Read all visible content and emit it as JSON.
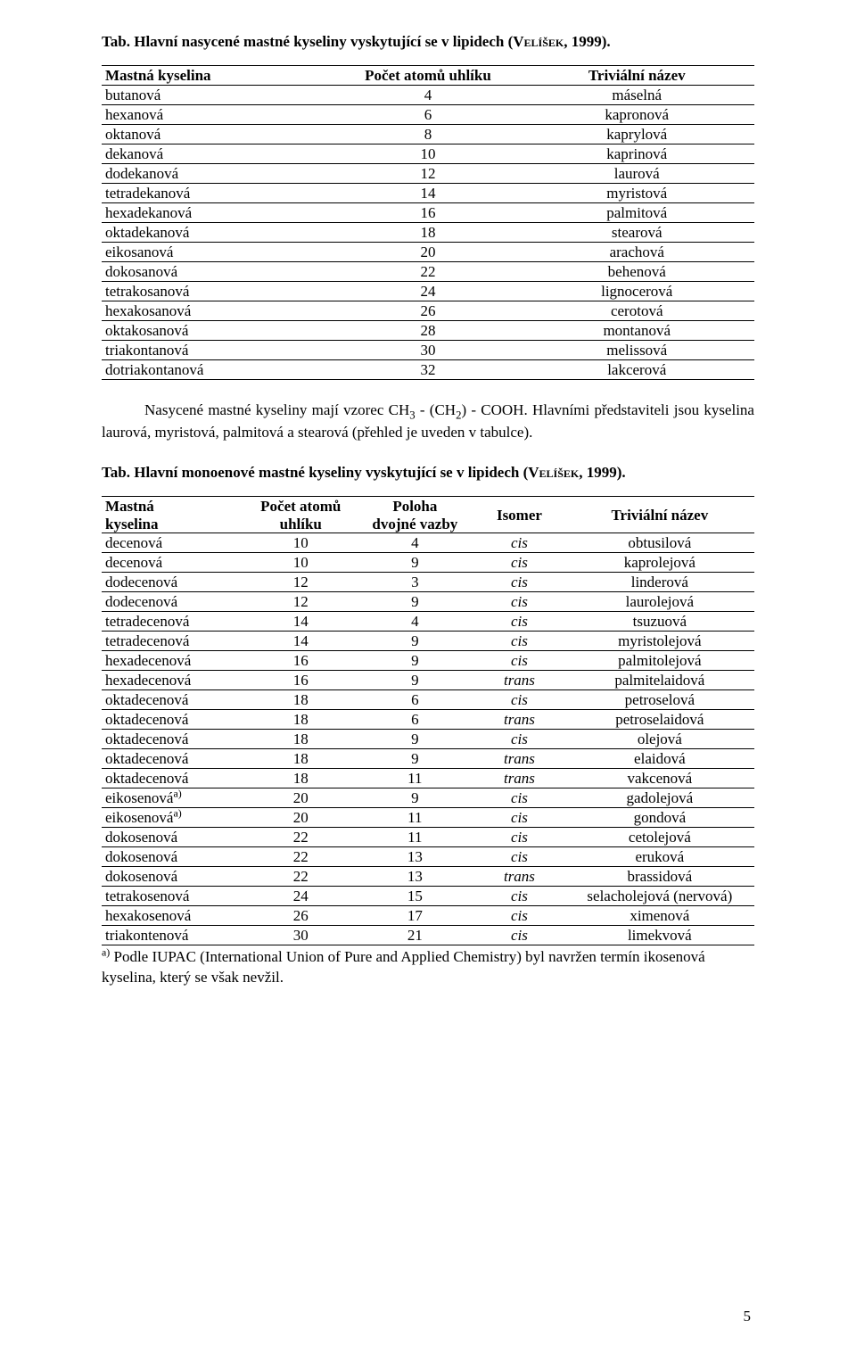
{
  "text_color": "#000000",
  "background_color": "#ffffff",
  "border_color": "#000000",
  "font_family_body": "Times New Roman",
  "fontsize_body_pt": 12,
  "caption1": {
    "label": "Tab.",
    "text": " Hlavní nasycené mastné kyseliny vyskytující se v lipidech (",
    "refname": "Velíšek",
    "tail": ", 1999)."
  },
  "table1": {
    "type": "table",
    "columns": [
      "Mastná kyselina",
      "Počet atomů uhlíku",
      "Triviální název"
    ],
    "col_align": [
      "left",
      "center",
      "center"
    ],
    "rows": [
      [
        "butanová",
        "4",
        "máselná"
      ],
      [
        "hexanová",
        "6",
        "kapronová"
      ],
      [
        "oktanová",
        "8",
        "kaprylová"
      ],
      [
        "dekanová",
        "10",
        "kaprinová"
      ],
      [
        "dodekanová",
        "12",
        "laurová"
      ],
      [
        "tetradekanová",
        "14",
        "myristová"
      ],
      [
        "hexadekanová",
        "16",
        "palmitová"
      ],
      [
        "oktadekanová",
        "18",
        "stearová"
      ],
      [
        "eikosanová",
        "20",
        "arachová"
      ],
      [
        "dokosanová",
        "22",
        "behenová"
      ],
      [
        "tetrakosanová",
        "24",
        "lignocerová"
      ],
      [
        "hexakosanová",
        "26",
        "cerotová"
      ],
      [
        "oktakosanová",
        "28",
        "montanová"
      ],
      [
        "triakontanová",
        "30",
        "melissová"
      ],
      [
        "dotriakontanová",
        "32",
        "lakcerová"
      ]
    ]
  },
  "paragraph": {
    "part1": "Nasycené mastné kyseliny mají vzorec CH",
    "sub1": "3",
    "part2": " - (CH",
    "sub2": "2",
    "part3": ") - COOH. Hlavními představiteli jsou kyselina laurová, myristová, palmitová a stearová (přehled je uveden v tabulce)."
  },
  "caption2": {
    "label": "Tab.",
    "text": " Hlavní monoenové mastné kyseliny vyskytující se v lipidech (",
    "refname": "Velíšek",
    "tail": ", 1999)."
  },
  "table2": {
    "type": "table",
    "columns": {
      "c1_l1": "Mastná",
      "c1_l2": "kyselina",
      "c2_l1": "Počet atomů",
      "c2_l2": "uhlíku",
      "c3_l1": "Poloha",
      "c3_l2": "dvojné vazby",
      "c4": "Isomer",
      "c5": "Triviální název"
    },
    "col_align": [
      "left",
      "center",
      "center",
      "center-italic",
      "center"
    ],
    "rows": [
      [
        "decenová",
        "10",
        "4",
        "cis",
        "obtusilová",
        ""
      ],
      [
        "decenová",
        "10",
        "9",
        "cis",
        "kaprolejová",
        ""
      ],
      [
        "dodecenová",
        "12",
        "3",
        "cis",
        "linderová",
        ""
      ],
      [
        "dodecenová",
        "12",
        "9",
        "cis",
        "laurolejová",
        ""
      ],
      [
        "tetradecenová",
        "14",
        "4",
        "cis",
        "tsuzuová",
        ""
      ],
      [
        "tetradecenová",
        "14",
        "9",
        "cis",
        "myristolejová",
        ""
      ],
      [
        "hexadecenová",
        "16",
        "9",
        "cis",
        "palmitolejová",
        ""
      ],
      [
        "hexadecenová",
        "16",
        "9",
        "trans",
        "palmitelaidová",
        ""
      ],
      [
        "oktadecenová",
        "18",
        "6",
        "cis",
        "petroselová",
        ""
      ],
      [
        "oktadecenová",
        "18",
        "6",
        "trans",
        "petroselaidová",
        ""
      ],
      [
        "oktadecenová",
        "18",
        "9",
        "cis",
        "olejová",
        ""
      ],
      [
        "oktadecenová",
        "18",
        "9",
        "trans",
        "elaidová",
        ""
      ],
      [
        "oktadecenová",
        "18",
        "11",
        "trans",
        "vakcenová",
        ""
      ],
      [
        "eikosenová",
        "20",
        "9",
        "cis",
        "gadolejová",
        "a)"
      ],
      [
        "eikosenová",
        "20",
        "11",
        "cis",
        "gondová",
        "a)"
      ],
      [
        "dokosenová",
        "22",
        "11",
        "cis",
        "cetolejová",
        ""
      ],
      [
        "dokosenová",
        "22",
        "13",
        "cis",
        "eruková",
        ""
      ],
      [
        "dokosenová",
        "22",
        "13",
        "trans",
        "brassidová",
        ""
      ],
      [
        "tetrakosenová",
        "24",
        "15",
        "cis",
        "selacholejová (nervová)",
        ""
      ],
      [
        "hexakosenová",
        "26",
        "17",
        "cis",
        "ximenová",
        ""
      ],
      [
        "triakontenová",
        "30",
        "21",
        "cis",
        "limekvová",
        ""
      ]
    ]
  },
  "footnote": {
    "mark": "a)",
    "text": " Podle IUPAC (International Union of Pure and Applied Chemistry) byl navržen termín ikosenová kyselina, který se však nevžil."
  },
  "page_number": "5"
}
